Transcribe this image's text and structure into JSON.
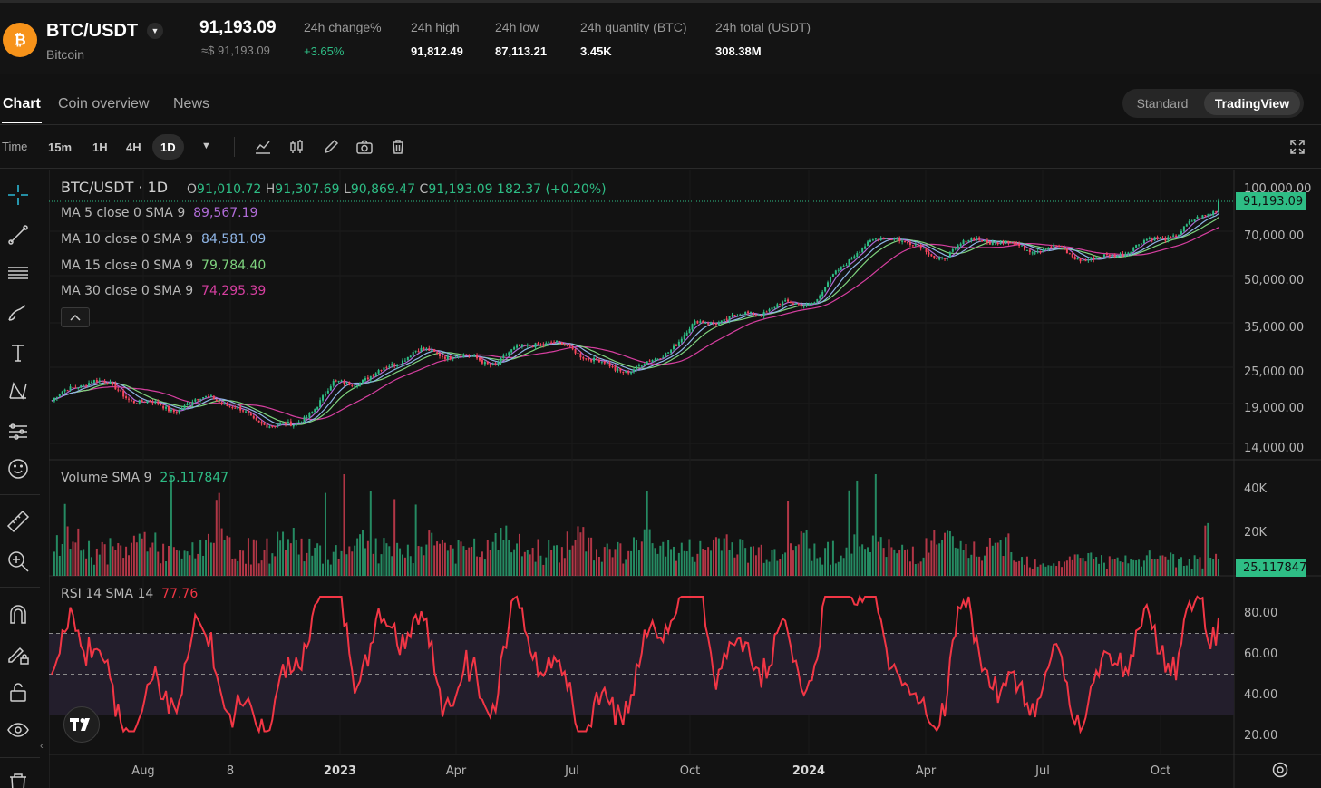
{
  "header": {
    "pair": "BTC/USDT",
    "coin_name": "Bitcoin",
    "price": "91,193.09",
    "price_usd": "≈$ 91,193.09",
    "stats": [
      {
        "label": "24h change%",
        "value": "+3.65%",
        "positive": true
      },
      {
        "label": "24h high",
        "value": "91,812.49"
      },
      {
        "label": "24h low",
        "value": "87,113.21"
      },
      {
        "label": "24h quantity (BTC)",
        "value": "3.45K"
      },
      {
        "label": "24h total (USDT)",
        "value": "308.38M"
      }
    ],
    "logo_color": "#f7931a"
  },
  "tabs": [
    "Chart",
    "Coin overview",
    "News"
  ],
  "view_modes": [
    "Standard",
    "TradingView"
  ],
  "toolbar": {
    "label": "Time",
    "timeframes": [
      "15m",
      "1H",
      "4H",
      "1D"
    ],
    "active_timeframe": "1D",
    "icons": [
      "indicators-icon",
      "candle-type-icon",
      "draw-icon",
      "screenshot-icon",
      "trash-icon",
      "fullscreen-icon"
    ]
  },
  "left_tools": [
    "crosshair-icon",
    "trendline-icon",
    "fib-lines-icon",
    "brush-icon",
    "text-icon",
    "pattern-icon",
    "forecast-icon",
    "emoji-icon",
    "ruler-icon",
    "zoom-in-icon",
    "magnet-icon",
    "lock-draw-icon",
    "lock-icon",
    "eye-icon",
    "trash-icon"
  ],
  "legend": {
    "symbol": "BTC/USDT · 1D",
    "ohlc": {
      "o_label": "O",
      "o": "91,010.72",
      "h_label": "H",
      "h": "91,307.69",
      "l_label": "L",
      "l": "90,869.47",
      "c_label": "C",
      "c": "91,193.09",
      "change": "182.37 (+0.20%)"
    },
    "ma": [
      {
        "label": "MA 5 close 0 SMA 9",
        "value": "89,567.19",
        "color": "#b06cd8"
      },
      {
        "label": "MA 10 close 0 SMA 9",
        "value": "84,581.09",
        "color": "#8fb5e6"
      },
      {
        "label": "MA 15 close 0 SMA 9",
        "value": "79,784.40",
        "color": "#7ed37e"
      },
      {
        "label": "MA 30 close 0 SMA 9",
        "value": "74,295.39",
        "color": "#d63fa0"
      }
    ],
    "volume": {
      "label": "Volume SMA 9",
      "value": "25.117847",
      "color": "#2ebd85"
    },
    "rsi": {
      "label": "RSI 14 SMA 14",
      "value": "77.76",
      "color": "#f23645"
    }
  },
  "price_tag": "91,193.09",
  "volume_tag": "25.117847",
  "colors": {
    "up": "#2ebd85",
    "down": "#f6465d",
    "rsi_line": "#f23645",
    "rsi_band": "#231e2c"
  },
  "chart_data": {
    "type": "candlestick",
    "price_axis_ticks": [
      "100,000.00",
      "70,000.00",
      "50,000.00",
      "35,000.00",
      "25,000.00",
      "19,000.00",
      "14,000.00"
    ],
    "volume_axis_ticks": [
      "40K",
      "20K"
    ],
    "rsi_axis_ticks": [
      "80.00",
      "60.00",
      "40.00",
      "20.00"
    ],
    "time_axis_ticks": [
      "Aug",
      "8",
      "2023",
      "Apr",
      "Jul",
      "Oct",
      "2024",
      "Apr",
      "Jul",
      "Oct"
    ],
    "close_price_path": [
      {
        "t": "2022-06",
        "close": 20000
      },
      {
        "t": "2022-07",
        "close": 23000
      },
      {
        "t": "2022-08",
        "close": 20500
      },
      {
        "t": "2022-09",
        "close": 19400
      },
      {
        "t": "2022-10",
        "close": 20500
      },
      {
        "t": "2022-11",
        "close": 16800
      },
      {
        "t": "2022-12",
        "close": 16600
      },
      {
        "t": "2023-01",
        "close": 23100
      },
      {
        "t": "2023-02",
        "close": 23500
      },
      {
        "t": "2023-03",
        "close": 28500
      },
      {
        "t": "2023-04",
        "close": 29200
      },
      {
        "t": "2023-05",
        "close": 27200
      },
      {
        "t": "2023-06",
        "close": 30500
      },
      {
        "t": "2023-07",
        "close": 29200
      },
      {
        "t": "2023-08",
        "close": 26000
      },
      {
        "t": "2023-09",
        "close": 27000
      },
      {
        "t": "2023-10",
        "close": 34500
      },
      {
        "t": "2023-11",
        "close": 37700
      },
      {
        "t": "2023-12",
        "close": 42300
      },
      {
        "t": "2024-01",
        "close": 42600
      },
      {
        "t": "2024-02",
        "close": 61200
      },
      {
        "t": "2024-03",
        "close": 71300
      },
      {
        "t": "2024-04",
        "close": 60700
      },
      {
        "t": "2024-05",
        "close": 67500
      },
      {
        "t": "2024-06",
        "close": 62700
      },
      {
        "t": "2024-07",
        "close": 64600
      },
      {
        "t": "2024-08",
        "close": 59000
      },
      {
        "t": "2024-09",
        "close": 63300
      },
      {
        "t": "2024-10",
        "close": 70200
      },
      {
        "t": "2024-11",
        "close": 91193
      }
    ]
  }
}
